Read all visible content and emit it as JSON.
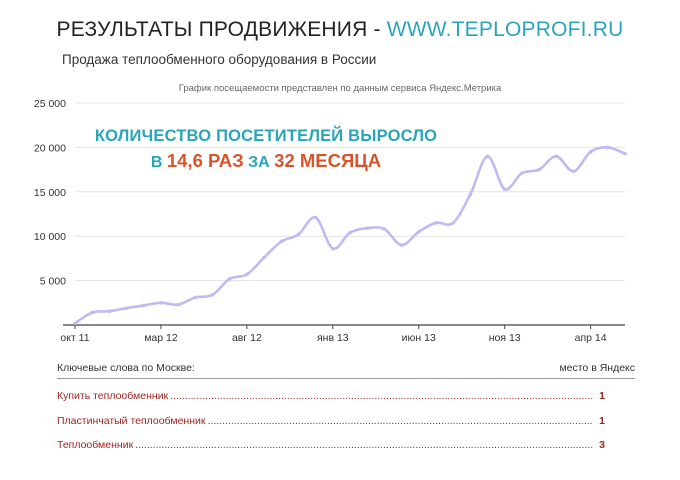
{
  "header": {
    "title_prefix": "РЕЗУЛЬТАТЫ ПРОДВИЖЕНИЯ - ",
    "title_url": "WWW.TEPLOPROFI.RU",
    "subtitle": "Продажа теплообменного оборудования в России",
    "note": "График посещаемости представлен по данным сервиса Яндекс.Метрика"
  },
  "callout": {
    "line1": "КОЛИЧЕСТВО ПОСЕТИТЕЛЕЙ ВЫРОСЛО",
    "w1": "В",
    "n1": "14,6 РАЗ",
    "w2": "ЗА",
    "n2": "32 МЕСЯЦА"
  },
  "chart_data": {
    "type": "line",
    "x_tick_labels": [
      "окт 11",
      "мар 12",
      "авг 12",
      "янв 13",
      "июн 13",
      "ноя 13",
      "апр 14"
    ],
    "y_tick_labels": [
      "5 000",
      "10 000",
      "15 000",
      "20 000",
      "25 000"
    ],
    "ylim": [
      0,
      25000
    ],
    "series_color": "#c4b8f2",
    "series": [
      {
        "values": [
          200,
          1400,
          1550,
          1900,
          2200,
          2500,
          2300,
          3100,
          3400,
          5200,
          5700,
          7600,
          9400,
          10200,
          12100,
          8600,
          10400,
          10900,
          10800,
          9000,
          10500,
          11500,
          11500,
          14700,
          19000,
          15300,
          17100,
          17500,
          19000,
          17300,
          19500,
          20000,
          19300
        ]
      }
    ]
  },
  "keywords": {
    "header_left": "Ключевые слова по Москве:",
    "header_right": "место в Яндекс",
    "rows": [
      {
        "name": "Купить теплообменник",
        "rank": "1"
      },
      {
        "name": "Пластинчатый теплообменник",
        "rank": "1"
      },
      {
        "name": "Теплообменник",
        "rank": "3"
      }
    ]
  }
}
